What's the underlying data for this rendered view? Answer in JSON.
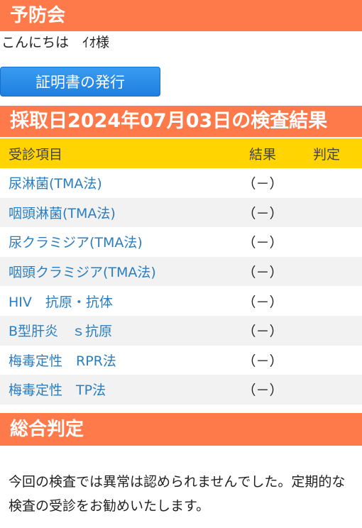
{
  "header": {
    "title": "予防会"
  },
  "greeting": "こんにちは　ｲｵ様",
  "certificate_button": "証明書の発行",
  "result_section_title": "採取日2024年07月03日の検査結果",
  "table": {
    "headers": [
      "受診項目",
      "結果",
      "判定"
    ],
    "rows": [
      {
        "item": "尿淋菌(TMA法)",
        "result": "（－）",
        "judgement": ""
      },
      {
        "item": "咽頭淋菌(TMA法)",
        "result": "（－）",
        "judgement": ""
      },
      {
        "item": "尿クラミジア(TMA法)",
        "result": "（－）",
        "judgement": ""
      },
      {
        "item": "咽頭クラミジア(TMA法)",
        "result": "（－）",
        "judgement": ""
      },
      {
        "item": "HIV　抗原・抗体",
        "result": "（－）",
        "judgement": ""
      },
      {
        "item": "B型肝炎　ｓ抗原",
        "result": "（－）",
        "judgement": ""
      },
      {
        "item": "梅毒定性　RPR法",
        "result": "（－）",
        "judgement": ""
      },
      {
        "item": "梅毒定性　TP法",
        "result": "（－）",
        "judgement": ""
      }
    ]
  },
  "summary": {
    "title": "総合判定",
    "text": "今回の検査では異常は認められませんでした。定期的な検査の受診をお勧めいたします。"
  },
  "colors": {
    "header_bar": "#ff7a4a",
    "table_header": "#ffd400",
    "button": "#1e7fe0",
    "item_text": "#2a7ec0"
  }
}
